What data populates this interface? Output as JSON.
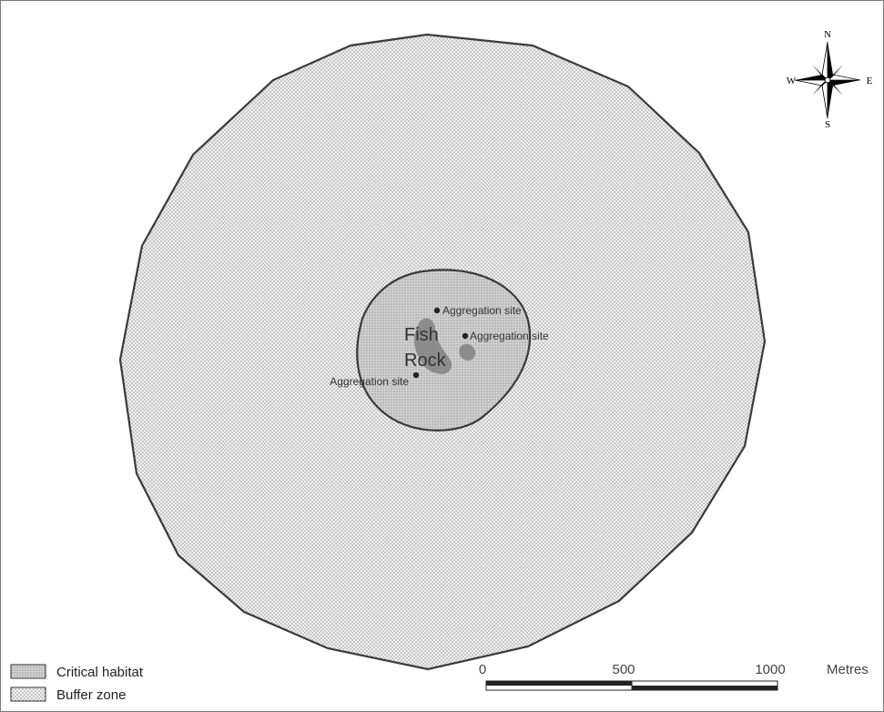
{
  "map": {
    "place_label_line1": "Fish",
    "place_label_line2": "Rock",
    "aggregation_sites": [
      {
        "label": "Aggregation site"
      },
      {
        "label": "Aggregation site"
      },
      {
        "label": "Aggregation site"
      }
    ]
  },
  "compass": {
    "n": "N",
    "s": "S",
    "e": "E",
    "w": "W"
  },
  "scale_bar": {
    "labels": [
      "0",
      "500",
      "1000"
    ],
    "unit": "Metres"
  },
  "legend": {
    "items": [
      {
        "label": "Critical habitat"
      },
      {
        "label": "Buffer zone"
      }
    ]
  },
  "colors": {
    "buffer_fill": "#e6e6e6",
    "critical_fill": "#c9c9c9",
    "rock_fill": "#8c8c8c",
    "outline": "#3a3a3a"
  }
}
